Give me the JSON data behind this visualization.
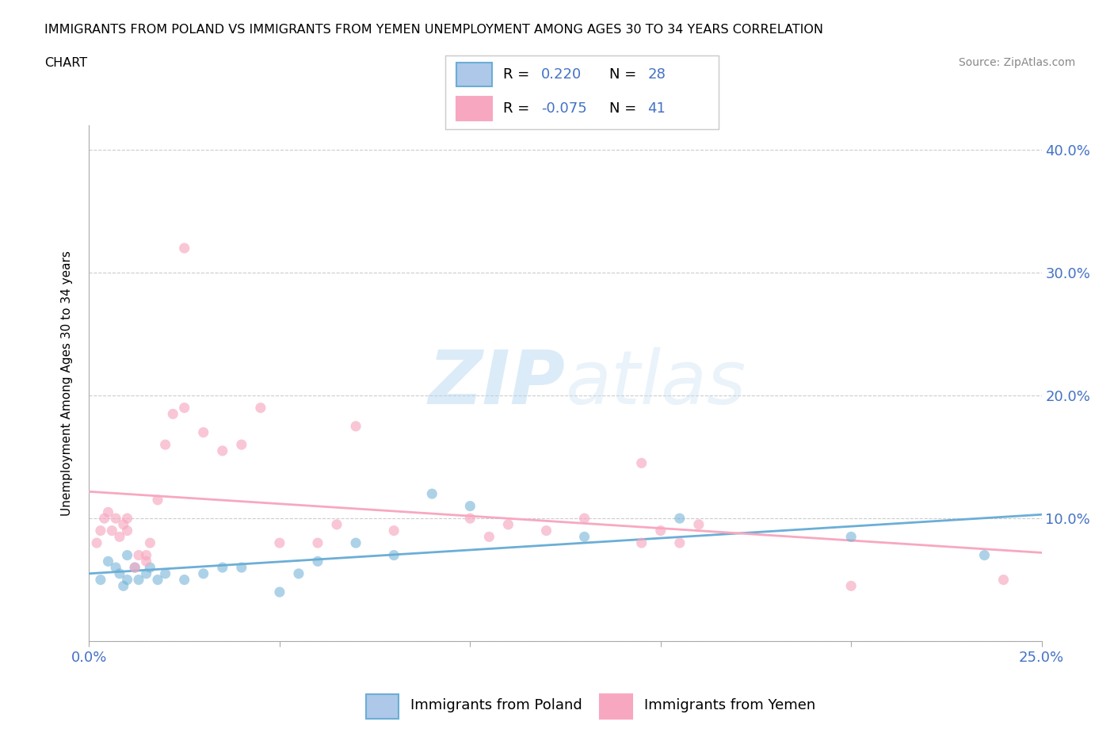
{
  "title_line1": "IMMIGRANTS FROM POLAND VS IMMIGRANTS FROM YEMEN UNEMPLOYMENT AMONG AGES 30 TO 34 YEARS CORRELATION",
  "title_line2": "CHART",
  "source_text": "Source: ZipAtlas.com",
  "ylabel": "Unemployment Among Ages 30 to 34 years",
  "xlim": [
    0.0,
    0.25
  ],
  "ylim": [
    0.0,
    0.42
  ],
  "poland_color": "#6baed6",
  "poland_color_fill": "#adc8e8",
  "yemen_color": "#f7a8c0",
  "yemen_color_fill": "#f7a8c0",
  "watermark_zip": "ZIP",
  "watermark_atlas": "atlas",
  "poland_r": "0.220",
  "poland_n": "28",
  "yemen_r": "-0.075",
  "yemen_n": "41",
  "legend_label1": "Immigrants from Poland",
  "legend_label2": "Immigrants from Yemen",
  "poland_scatter_x": [
    0.003,
    0.005,
    0.007,
    0.008,
    0.009,
    0.01,
    0.01,
    0.012,
    0.013,
    0.015,
    0.016,
    0.018,
    0.02,
    0.025,
    0.03,
    0.035,
    0.04,
    0.05,
    0.055,
    0.06,
    0.07,
    0.08,
    0.09,
    0.1,
    0.13,
    0.155,
    0.2,
    0.235
  ],
  "poland_scatter_y": [
    0.05,
    0.065,
    0.06,
    0.055,
    0.045,
    0.05,
    0.07,
    0.06,
    0.05,
    0.055,
    0.06,
    0.05,
    0.055,
    0.05,
    0.055,
    0.06,
    0.06,
    0.04,
    0.055,
    0.065,
    0.08,
    0.07,
    0.12,
    0.11,
    0.085,
    0.1,
    0.085,
    0.07
  ],
  "yemen_scatter_x": [
    0.002,
    0.003,
    0.004,
    0.005,
    0.006,
    0.007,
    0.008,
    0.009,
    0.01,
    0.01,
    0.012,
    0.013,
    0.015,
    0.015,
    0.016,
    0.018,
    0.02,
    0.022,
    0.025,
    0.025,
    0.03,
    0.035,
    0.04,
    0.045,
    0.05,
    0.06,
    0.065,
    0.07,
    0.08,
    0.1,
    0.105,
    0.11,
    0.12,
    0.13,
    0.145,
    0.145,
    0.15,
    0.155,
    0.16,
    0.2,
    0.24
  ],
  "yemen_scatter_y": [
    0.08,
    0.09,
    0.1,
    0.105,
    0.09,
    0.1,
    0.085,
    0.095,
    0.09,
    0.1,
    0.06,
    0.07,
    0.065,
    0.07,
    0.08,
    0.115,
    0.16,
    0.185,
    0.19,
    0.32,
    0.17,
    0.155,
    0.16,
    0.19,
    0.08,
    0.08,
    0.095,
    0.175,
    0.09,
    0.1,
    0.085,
    0.095,
    0.09,
    0.1,
    0.08,
    0.145,
    0.09,
    0.08,
    0.095,
    0.045,
    0.05
  ]
}
